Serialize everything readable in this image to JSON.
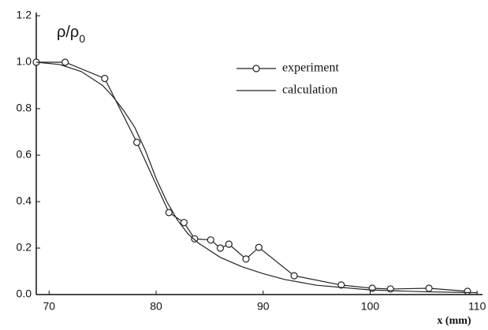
{
  "chart_data": {
    "type": "line",
    "ylabel": {
      "text": "ρ/ρ",
      "subscript": "0"
    },
    "xlabel": "x (mm)",
    "xlim": [
      68.8,
      110.5
    ],
    "ylim": [
      0,
      1.2
    ],
    "xticks": [
      70,
      80,
      90,
      100,
      110
    ],
    "yticks": [
      {
        "value": 0,
        "label": "0.0"
      },
      {
        "value": 0.2,
        "label": "0.2"
      },
      {
        "value": 0.4,
        "label": "0.4"
      },
      {
        "value": 0.6,
        "label": "0.6"
      },
      {
        "value": 0.8,
        "label": "0.8"
      },
      {
        "value": 1.0,
        "label": "1.0"
      },
      {
        "value": 1.2,
        "label": "1.2"
      }
    ],
    "series": [
      {
        "name": "experiment",
        "color": "#222222",
        "marker": "circle",
        "x": [
          68.8,
          71.5,
          75.2,
          78.2,
          81.2,
          82.6,
          83.6,
          85.1,
          86.0,
          86.8,
          88.4,
          89.6,
          92.9,
          97.3,
          100.2,
          101.9,
          105.5,
          109.1
        ],
        "values": [
          1.0,
          1.0,
          0.93,
          0.655,
          0.353,
          0.31,
          0.24,
          0.235,
          0.2,
          0.217,
          0.153,
          0.203,
          0.081,
          0.041,
          0.027,
          0.024,
          0.027,
          0.014
        ]
      },
      {
        "name": "calculation",
        "color": "#222222",
        "marker": "none",
        "x": [
          68.8,
          71,
          73,
          75,
          76,
          77,
          78,
          79,
          80,
          81,
          82,
          83,
          84,
          86,
          88,
          90,
          92,
          95,
          100,
          105,
          110
        ],
        "values": [
          1.0,
          0.99,
          0.96,
          0.9,
          0.85,
          0.79,
          0.72,
          0.62,
          0.5,
          0.4,
          0.32,
          0.26,
          0.22,
          0.16,
          0.12,
          0.09,
          0.065,
          0.04,
          0.02,
          0.012,
          0.008
        ]
      }
    ]
  }
}
